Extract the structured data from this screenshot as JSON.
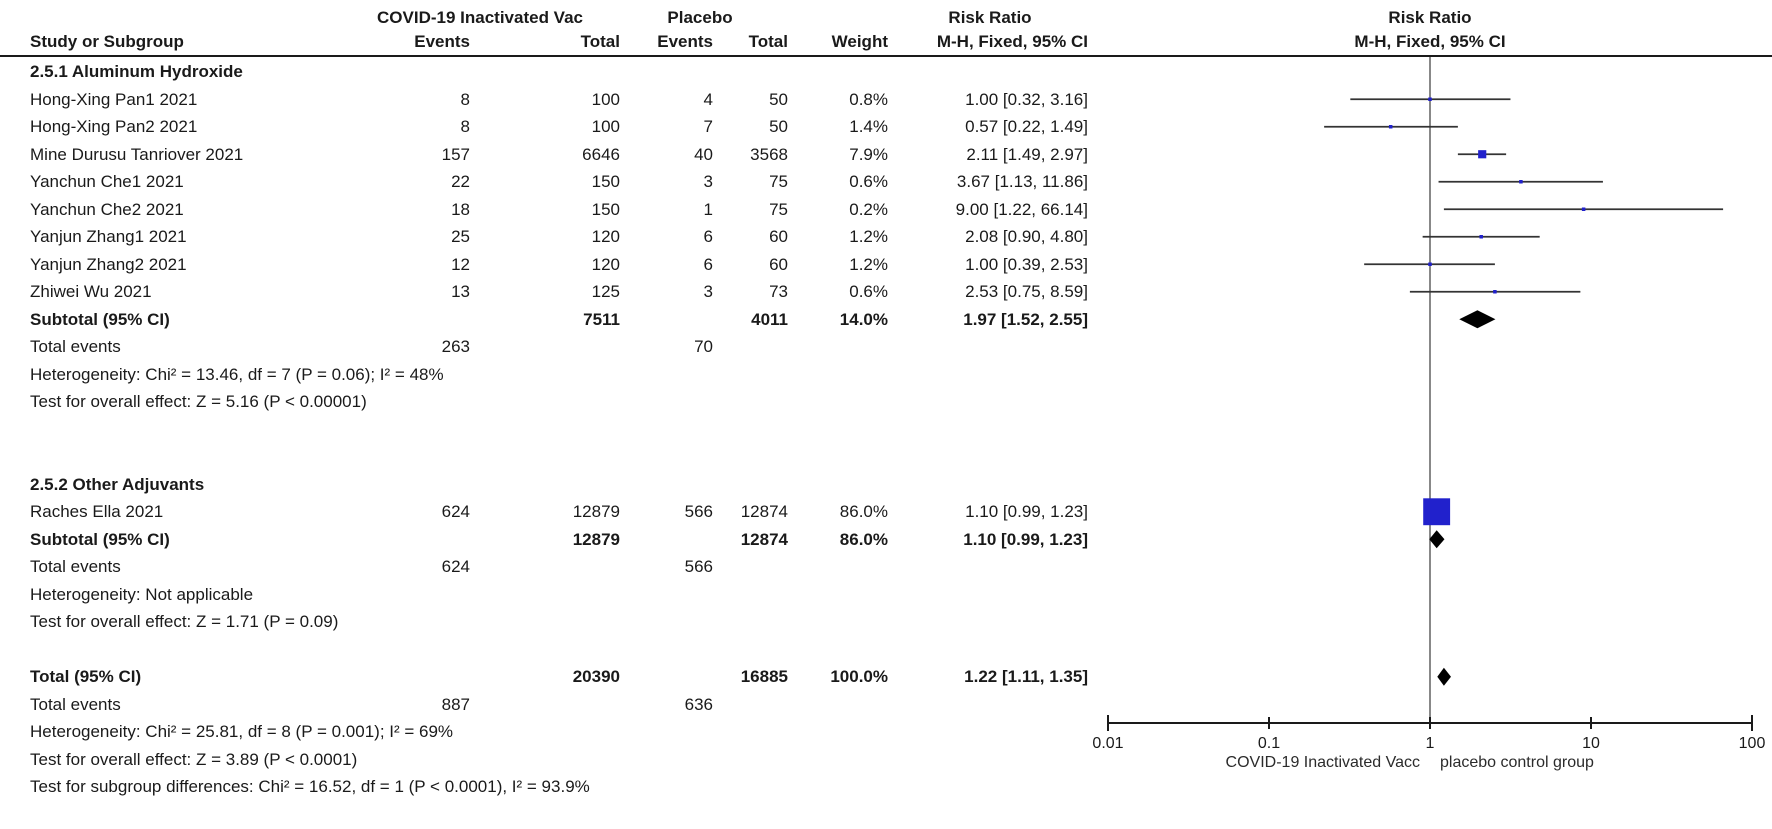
{
  "header": {
    "vaccine_group": "COVID-19 Inactivated Vac",
    "placebo_group": "Placebo",
    "risk_ratio_left": "Risk Ratio",
    "risk_ratio_right": "Risk Ratio",
    "study": "Study or Subgroup",
    "events": "Events",
    "total": "Total",
    "events2": "Events",
    "total2": "Total",
    "weight": "Weight",
    "method_left": "M-H, Fixed, 95% CI",
    "method_right": "M-H, Fixed, 95% CI"
  },
  "axis_footer": {
    "left": "COVID-19 Inactivated Vacc",
    "right": "placebo control group"
  },
  "colors": {
    "study_marker": "#2121cc",
    "summary_diamond": "#000000",
    "ci_line": "#333333",
    "unity_line": "#555555",
    "axis": "#1a1a1a",
    "text": "#1a1a1a"
  },
  "chart_data": {
    "type": "forest",
    "effect_measure": "Risk Ratio",
    "method": "M-H, Fixed, 95% CI",
    "x_scale": "log",
    "x_range": [
      0.01,
      100
    ],
    "x_ticks": [
      "0.01",
      "0.1",
      "1",
      "10",
      "100"
    ],
    "rows": [
      {
        "type": "subgroup",
        "label": "2.5.1 Aluminum Hydroxide"
      },
      {
        "type": "study",
        "label": "Hong-Xing Pan1 2021",
        "events1": 8,
        "total1": 100,
        "events2": 4,
        "total2": 50,
        "weight": 0.8,
        "est": 1.0,
        "lo": 0.32,
        "hi": 3.16
      },
      {
        "type": "study",
        "label": "Hong-Xing Pan2 2021",
        "events1": 8,
        "total1": 100,
        "events2": 7,
        "total2": 50,
        "weight": 1.4,
        "est": 0.57,
        "lo": 0.22,
        "hi": 1.49
      },
      {
        "type": "study",
        "label": "Mine Durusu Tanriover 2021",
        "events1": 157,
        "total1": 6646,
        "events2": 40,
        "total2": 3568,
        "weight": 7.9,
        "est": 2.11,
        "lo": 1.49,
        "hi": 2.97
      },
      {
        "type": "study",
        "label": "Yanchun Che1 2021",
        "events1": 22,
        "total1": 150,
        "events2": 3,
        "total2": 75,
        "weight": 0.6,
        "est": 3.67,
        "lo": 1.13,
        "hi": 11.86
      },
      {
        "type": "study",
        "label": "Yanchun Che2 2021",
        "events1": 18,
        "total1": 150,
        "events2": 1,
        "total2": 75,
        "weight": 0.2,
        "est": 9.0,
        "lo": 1.22,
        "hi": 66.14
      },
      {
        "type": "study",
        "label": "Yanjun Zhang1 2021",
        "events1": 25,
        "total1": 120,
        "events2": 6,
        "total2": 60,
        "weight": 1.2,
        "est": 2.08,
        "lo": 0.9,
        "hi": 4.8
      },
      {
        "type": "study",
        "label": "Yanjun Zhang2 2021",
        "events1": 12,
        "total1": 120,
        "events2": 6,
        "total2": 60,
        "weight": 1.2,
        "est": 1.0,
        "lo": 0.39,
        "hi": 2.53
      },
      {
        "type": "study",
        "label": "Zhiwei Wu 2021",
        "events1": 13,
        "total1": 125,
        "events2": 3,
        "total2": 73,
        "weight": 0.6,
        "est": 2.53,
        "lo": 0.75,
        "hi": 8.59
      },
      {
        "type": "subtotal",
        "label": "Subtotal (95% CI)",
        "total1": 7511,
        "total2": 4011,
        "weight": 14.0,
        "est": 1.97,
        "lo": 1.52,
        "hi": 2.55
      },
      {
        "type": "events",
        "label": "Total events",
        "events1": 263,
        "events2": 70
      },
      {
        "type": "note",
        "label": "Heterogeneity: Chi² = 13.46, df = 7 (P = 0.06); I² = 48%"
      },
      {
        "type": "note",
        "label": "Test for overall effect: Z = 5.16 (P < 0.00001)"
      },
      {
        "type": "spacer"
      },
      {
        "type": "spacer"
      },
      {
        "type": "subgroup",
        "label": "2.5.2 Other Adjuvants"
      },
      {
        "type": "study",
        "label": "Raches Ella 2021",
        "events1": 624,
        "total1": 12879,
        "events2": 566,
        "total2": 12874,
        "weight": 86.0,
        "est": 1.1,
        "lo": 0.99,
        "hi": 1.23
      },
      {
        "type": "subtotal",
        "label": "Subtotal (95% CI)",
        "total1": 12879,
        "total2": 12874,
        "weight": 86.0,
        "est": 1.1,
        "lo": 0.99,
        "hi": 1.23
      },
      {
        "type": "events",
        "label": "Total events",
        "events1": 624,
        "events2": 566
      },
      {
        "type": "note",
        "label": "Heterogeneity: Not applicable"
      },
      {
        "type": "note",
        "label": "Test for overall effect: Z = 1.71 (P = 0.09)"
      },
      {
        "type": "spacer"
      },
      {
        "type": "total",
        "label": "Total (95% CI)",
        "total1": 20390,
        "total2": 16885,
        "weight": 100.0,
        "est": 1.22,
        "lo": 1.11,
        "hi": 1.35
      },
      {
        "type": "events",
        "label": "Total events",
        "events1": 887,
        "events2": 636
      },
      {
        "type": "note",
        "label": "Heterogeneity: Chi² = 25.81, df = 8 (P = 0.001); I² = 69%"
      },
      {
        "type": "note",
        "label": "Test for overall effect: Z = 3.89 (P < 0.0001)"
      },
      {
        "type": "note",
        "label": "Test for subgroup differences: Chi² = 16.52, df = 1 (P < 0.0001), I² = 93.9%"
      }
    ]
  }
}
